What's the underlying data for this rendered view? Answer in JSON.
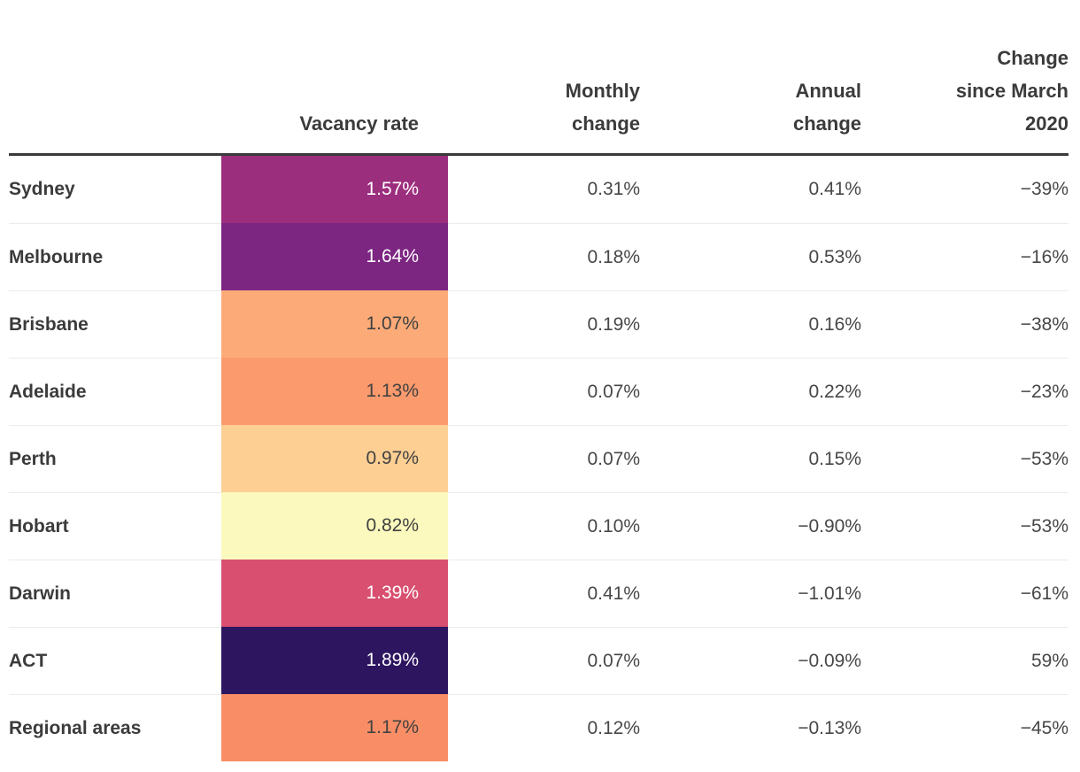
{
  "table": {
    "headers": {
      "city": "",
      "vacancy": "Vacancy rate",
      "monthly": "Monthly\nchange",
      "annual": "Annual\nchange",
      "since_march_2020": "Change\nsince March\n2020"
    },
    "rows": [
      {
        "city": "Sydney",
        "vacancy": "1.57%",
        "cell_bg": "#9c2e7e",
        "cell_fg": "#ffffff",
        "monthly": "0.31%",
        "annual": "0.41%",
        "since_march_2020": "−39%"
      },
      {
        "city": "Melbourne",
        "vacancy": "1.64%",
        "cell_bg": "#7c2581",
        "cell_fg": "#ffffff",
        "monthly": "0.18%",
        "annual": "0.53%",
        "since_march_2020": "−16%"
      },
      {
        "city": "Brisbane",
        "vacancy": "1.07%",
        "cell_bg": "#fcab78",
        "cell_fg": "#414141",
        "monthly": "0.19%",
        "annual": "0.16%",
        "since_march_2020": "−38%"
      },
      {
        "city": "Adelaide",
        "vacancy": "1.13%",
        "cell_bg": "#fa9a6d",
        "cell_fg": "#414141",
        "monthly": "0.07%",
        "annual": "0.22%",
        "since_march_2020": "−23%"
      },
      {
        "city": "Perth",
        "vacancy": "0.97%",
        "cell_bg": "#fdcf93",
        "cell_fg": "#414141",
        "monthly": "0.07%",
        "annual": "0.15%",
        "since_march_2020": "−53%"
      },
      {
        "city": "Hobart",
        "vacancy": "0.82%",
        "cell_bg": "#fbf9bd",
        "cell_fg": "#414141",
        "monthly": "0.10%",
        "annual": "−0.90%",
        "since_march_2020": "−53%"
      },
      {
        "city": "Darwin",
        "vacancy": "1.39%",
        "cell_bg": "#d84f6f",
        "cell_fg": "#ffffff",
        "monthly": "0.41%",
        "annual": "−1.01%",
        "since_march_2020": "−61%"
      },
      {
        "city": "ACT",
        "vacancy": "1.89%",
        "cell_bg": "#2d1560",
        "cell_fg": "#ffffff",
        "monthly": "0.07%",
        "annual": "−0.09%",
        "since_march_2020": "59%"
      },
      {
        "city": "Regional areas",
        "vacancy": "1.17%",
        "cell_bg": "#f98e66",
        "cell_fg": "#414141",
        "monthly": "0.12%",
        "annual": "−0.13%",
        "since_march_2020": "−45%"
      }
    ]
  },
  "chart_data": {
    "type": "table",
    "columns": [
      "",
      "Vacancy rate",
      "Monthly change",
      "Annual change",
      "Change since March 2020"
    ],
    "units": "%",
    "heatmap_column": "Vacancy rate",
    "rows": [
      {
        "label": "Sydney",
        "vacancy_rate": 1.57,
        "monthly_change": 0.31,
        "annual_change": 0.41,
        "change_since_march_2020": -39,
        "cell_color": "#9c2e7e"
      },
      {
        "label": "Melbourne",
        "vacancy_rate": 1.64,
        "monthly_change": 0.18,
        "annual_change": 0.53,
        "change_since_march_2020": -16,
        "cell_color": "#7c2581"
      },
      {
        "label": "Brisbane",
        "vacancy_rate": 1.07,
        "monthly_change": 0.19,
        "annual_change": 0.16,
        "change_since_march_2020": -38,
        "cell_color": "#fcab78"
      },
      {
        "label": "Adelaide",
        "vacancy_rate": 1.13,
        "monthly_change": 0.07,
        "annual_change": 0.22,
        "change_since_march_2020": -23,
        "cell_color": "#fa9a6d"
      },
      {
        "label": "Perth",
        "vacancy_rate": 0.97,
        "monthly_change": 0.07,
        "annual_change": 0.15,
        "change_since_march_2020": -53,
        "cell_color": "#fdcf93"
      },
      {
        "label": "Hobart",
        "vacancy_rate": 0.82,
        "monthly_change": 0.1,
        "annual_change": -0.9,
        "change_since_march_2020": -53,
        "cell_color": "#fbf9bd"
      },
      {
        "label": "Darwin",
        "vacancy_rate": 1.39,
        "monthly_change": 0.41,
        "annual_change": -1.01,
        "change_since_march_2020": -61,
        "cell_color": "#d84f6f"
      },
      {
        "label": "ACT",
        "vacancy_rate": 1.89,
        "monthly_change": 0.07,
        "annual_change": -0.09,
        "change_since_march_2020": 59,
        "cell_color": "#2d1560"
      },
      {
        "label": "Regional areas",
        "vacancy_rate": 1.17,
        "monthly_change": 0.12,
        "annual_change": -0.13,
        "change_since_march_2020": -45,
        "cell_color": "#f98e66"
      }
    ]
  }
}
